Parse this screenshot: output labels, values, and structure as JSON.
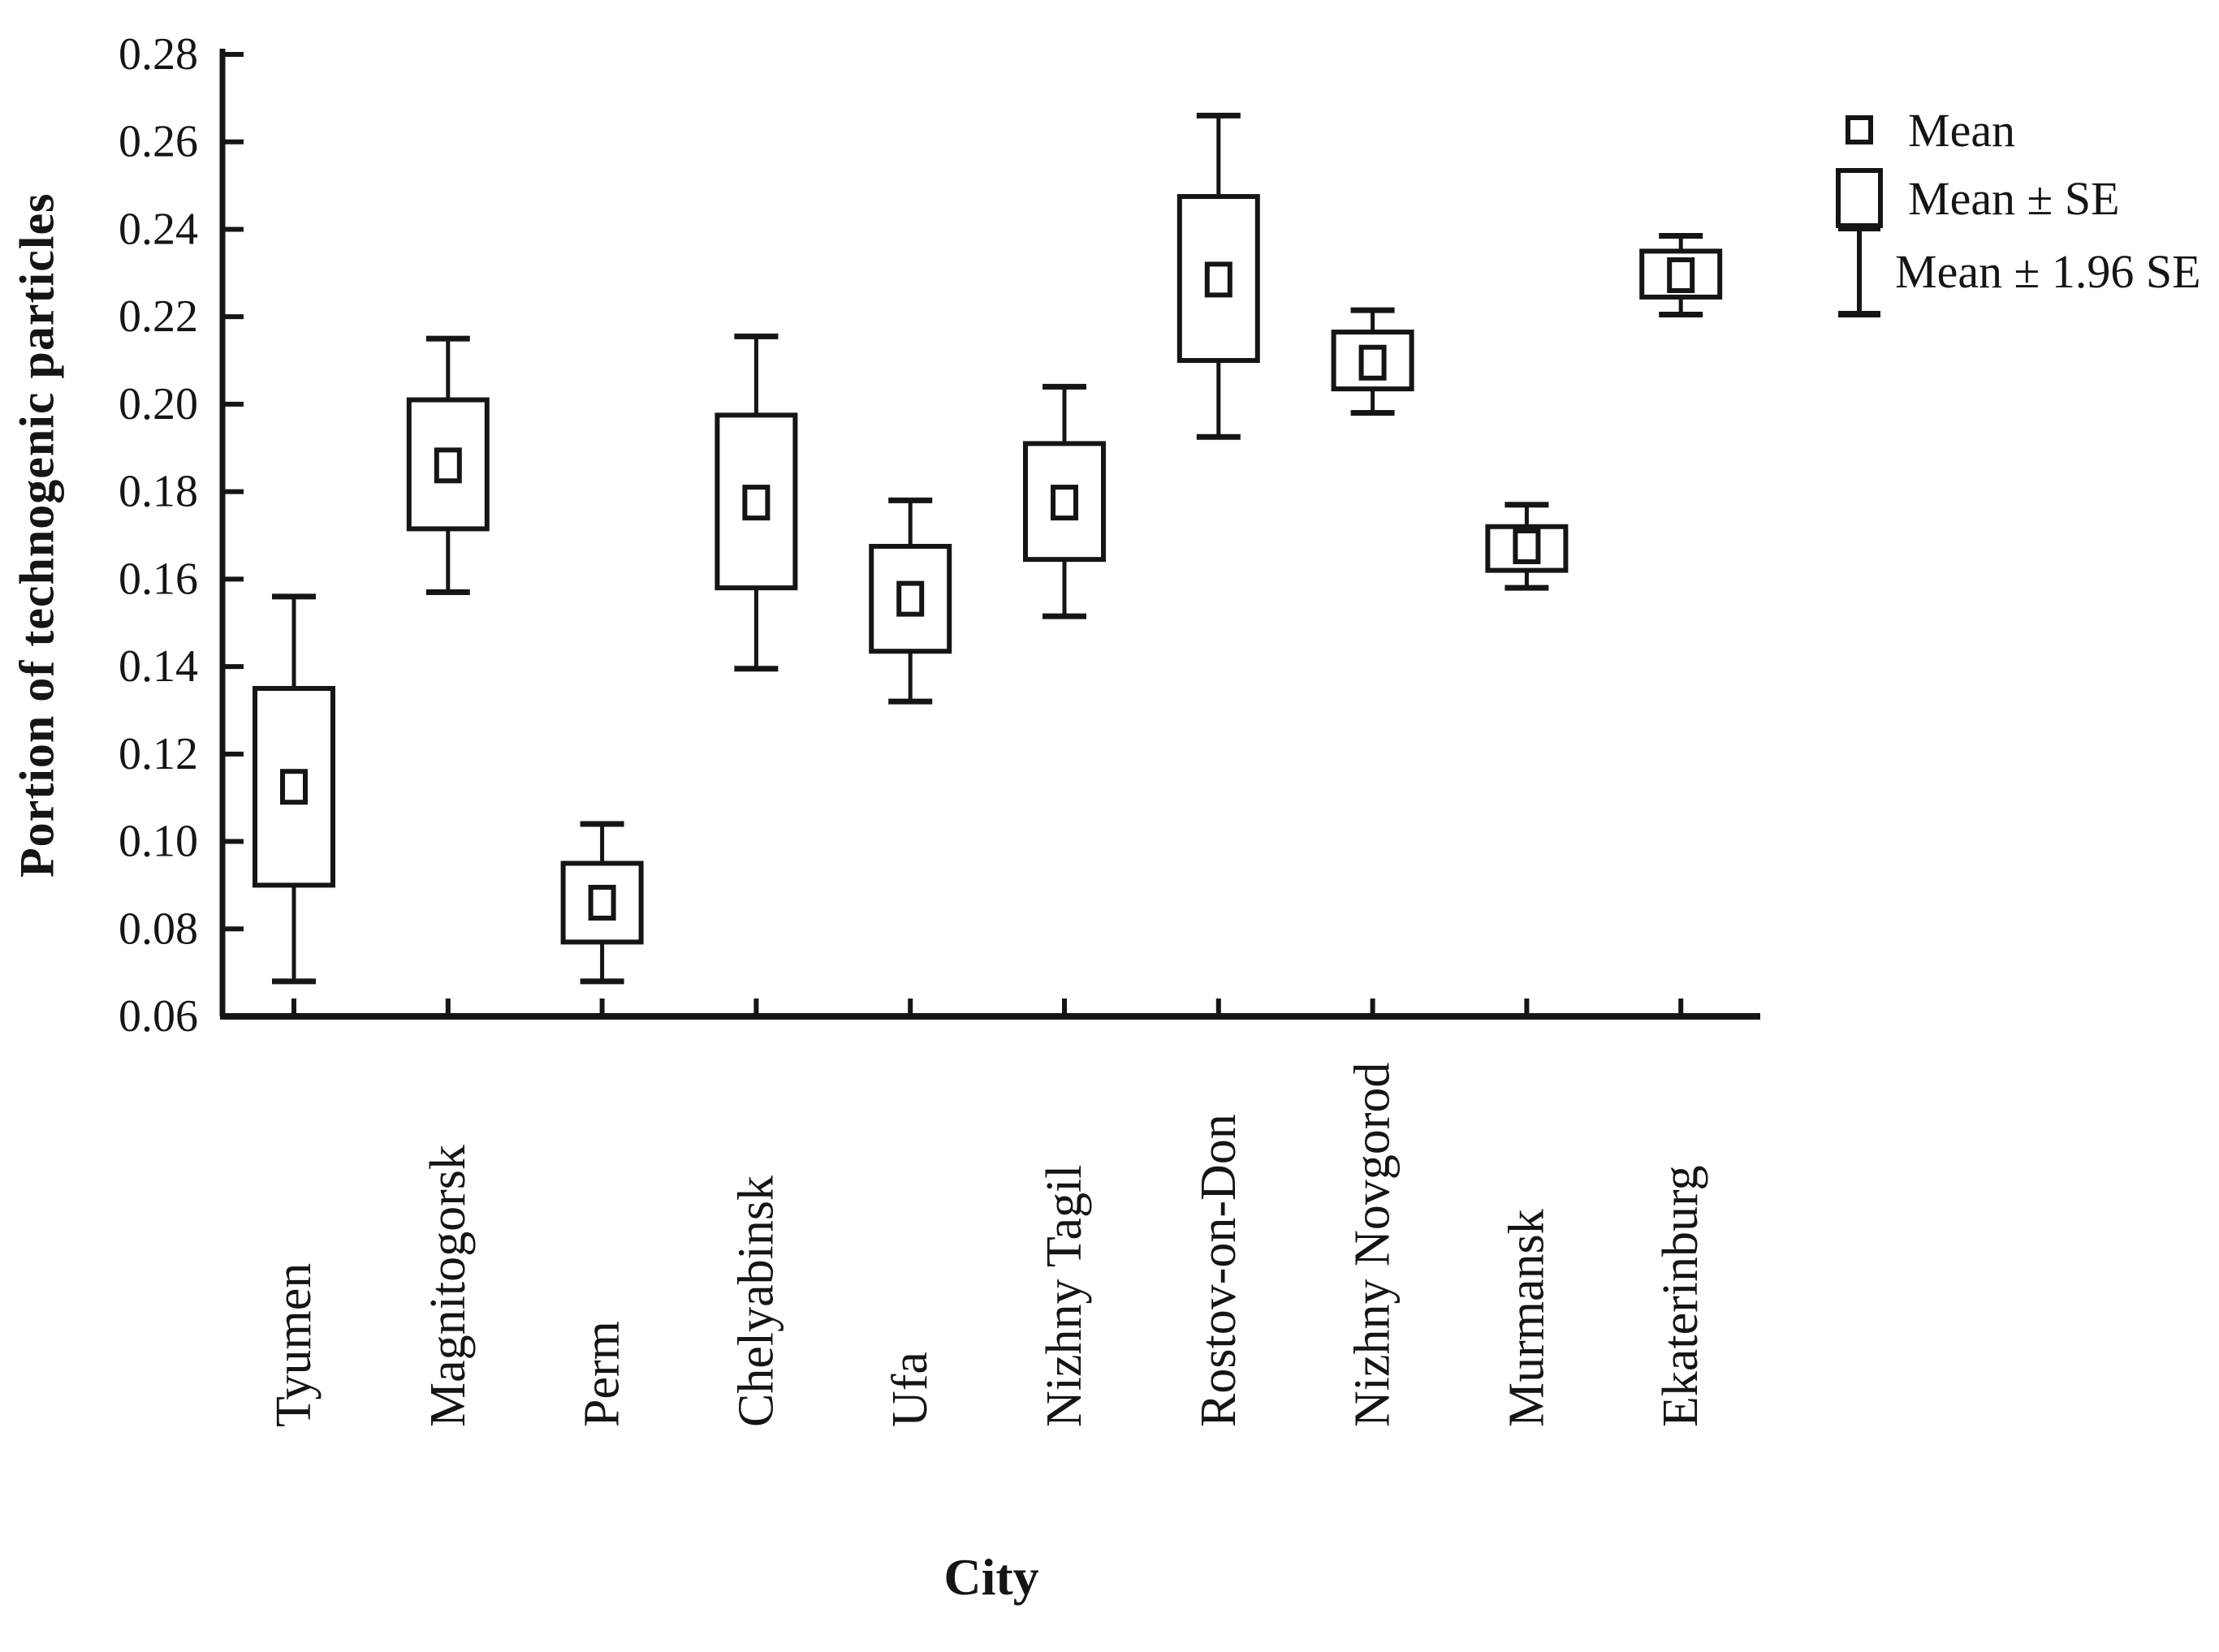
{
  "figure": {
    "background": "#ffffff",
    "ink_color": "#151515"
  },
  "legend": {
    "items": [
      {
        "symbol": "mean-square-icon",
        "label": "Mean"
      },
      {
        "symbol": "se-box-icon",
        "label": "Mean ± SE"
      },
      {
        "symbol": "error-bar-icon",
        "label": "Mean ± 1.96 SE"
      }
    ]
  },
  "chart_data": {
    "type": "box",
    "title": "",
    "xlabel": "City",
    "ylabel": "Portion of technogenic particles",
    "ylim": [
      0.06,
      0.28
    ],
    "y_tick_step": 0.02,
    "y_tick_labels": [
      "0.06",
      "0.08",
      "0.10",
      "0.12",
      "0.14",
      "0.16",
      "0.18",
      "0.20",
      "0.22",
      "0.24",
      "0.26",
      "0.28"
    ],
    "grid": false,
    "legend_position": "upper-right-outside",
    "categories": [
      "Tyumen",
      "Magnitogorsk",
      "Perm",
      "Chelyabinsk",
      "Ufa",
      "Nizhny Tagil",
      "Rostov-on-Don",
      "Nizhny Novgorod",
      "Murmansk",
      "Ekaterinburg"
    ],
    "boxes": [
      {
        "city": "Tyumen",
        "mean": 0.1125,
        "mean_minus_se": 0.09,
        "mean_plus_se": 0.135,
        "mean_minus_1_96se": 0.068,
        "mean_plus_1_96se": 0.156
      },
      {
        "city": "Magnitogorsk",
        "mean": 0.186,
        "mean_minus_se": 0.1715,
        "mean_plus_se": 0.201,
        "mean_minus_1_96se": 0.157,
        "mean_plus_1_96se": 0.215
      },
      {
        "city": "Perm",
        "mean": 0.086,
        "mean_minus_se": 0.077,
        "mean_plus_se": 0.095,
        "mean_minus_1_96se": 0.068,
        "mean_plus_1_96se": 0.104
      },
      {
        "city": "Chelyabinsk",
        "mean": 0.1775,
        "mean_minus_se": 0.158,
        "mean_plus_se": 0.1975,
        "mean_minus_1_96se": 0.1395,
        "mean_plus_1_96se": 0.2155
      },
      {
        "city": "Ufa",
        "mean": 0.1555,
        "mean_minus_se": 0.1435,
        "mean_plus_se": 0.1675,
        "mean_minus_1_96se": 0.132,
        "mean_plus_1_96se": 0.178
      },
      {
        "city": "Nizhny Tagil",
        "mean": 0.1775,
        "mean_minus_se": 0.1645,
        "mean_plus_se": 0.191,
        "mean_minus_1_96se": 0.1515,
        "mean_plus_1_96se": 0.204
      },
      {
        "city": "Rostov-on-Don",
        "mean": 0.2285,
        "mean_minus_se": 0.21,
        "mean_plus_se": 0.2475,
        "mean_minus_1_96se": 0.1925,
        "mean_plus_1_96se": 0.266
      },
      {
        "city": "Nizhny Novgorod",
        "mean": 0.2095,
        "mean_minus_se": 0.2035,
        "mean_plus_se": 0.2165,
        "mean_minus_1_96se": 0.198,
        "mean_plus_1_96se": 0.2215
      },
      {
        "city": "Murmansk",
        "mean": 0.1675,
        "mean_minus_se": 0.162,
        "mean_plus_se": 0.172,
        "mean_minus_1_96se": 0.158,
        "mean_plus_1_96se": 0.177
      },
      {
        "city": "Ekaterinburg",
        "mean": 0.2295,
        "mean_minus_se": 0.2245,
        "mean_plus_se": 0.235,
        "mean_minus_1_96se": 0.2205,
        "mean_plus_1_96se": 0.2385
      }
    ]
  }
}
